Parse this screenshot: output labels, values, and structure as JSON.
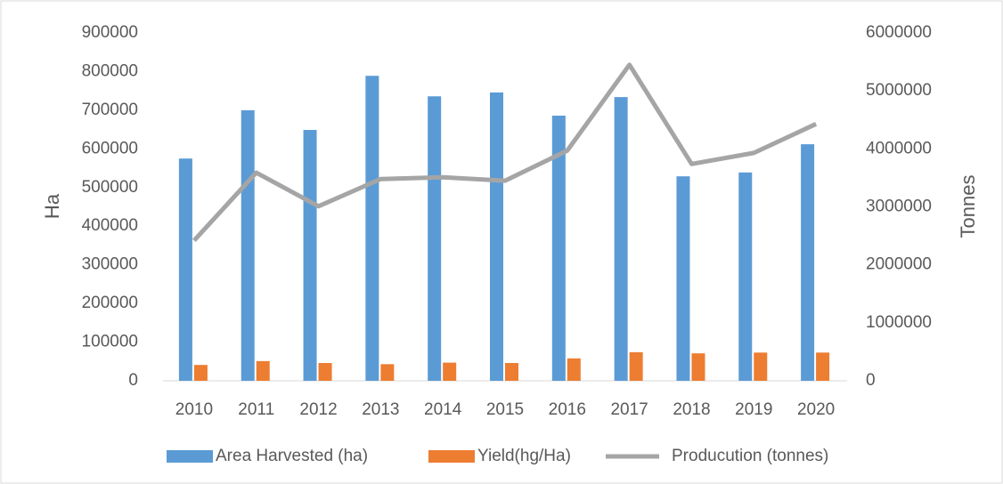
{
  "chart_data": {
    "type": "bar",
    "categories": [
      "2010",
      "2011",
      "2012",
      "2013",
      "2014",
      "2015",
      "2016",
      "2017",
      "2018",
      "2019",
      "2020"
    ],
    "series": [
      {
        "name": "Area Harvested (ha)",
        "color": "#5b9bd5",
        "values": [
          575000,
          700000,
          649000,
          789000,
          736000,
          746000,
          686000,
          734000,
          529000,
          539000,
          612000
        ]
      },
      {
        "name": "Yield(hg/Ha)",
        "color": "#ed7d31",
        "values": [
          41000,
          51000,
          46000,
          43000,
          47000,
          46000,
          58000,
          74000,
          71000,
          73000,
          73000
        ]
      },
      {
        "name": "Producution (tonnes)",
        "color": "#a5a5a5",
        "type": "line",
        "axis": "y2",
        "values": [
          2420000,
          3590000,
          3010000,
          3480000,
          3510000,
          3450000,
          3970000,
          5450000,
          3740000,
          3930000,
          4430000
        ]
      }
    ],
    "ylabel": "Ha",
    "y2label": "Tonnes",
    "ylim": [
      0,
      900000
    ],
    "yticks": [
      0,
      100000,
      200000,
      300000,
      400000,
      500000,
      600000,
      700000,
      800000,
      900000
    ],
    "y2lim": [
      0,
      6000000
    ],
    "y2ticks": [
      0,
      1000000,
      2000000,
      3000000,
      4000000,
      5000000,
      6000000
    ],
    "grid": false,
    "legend": "bottom"
  }
}
